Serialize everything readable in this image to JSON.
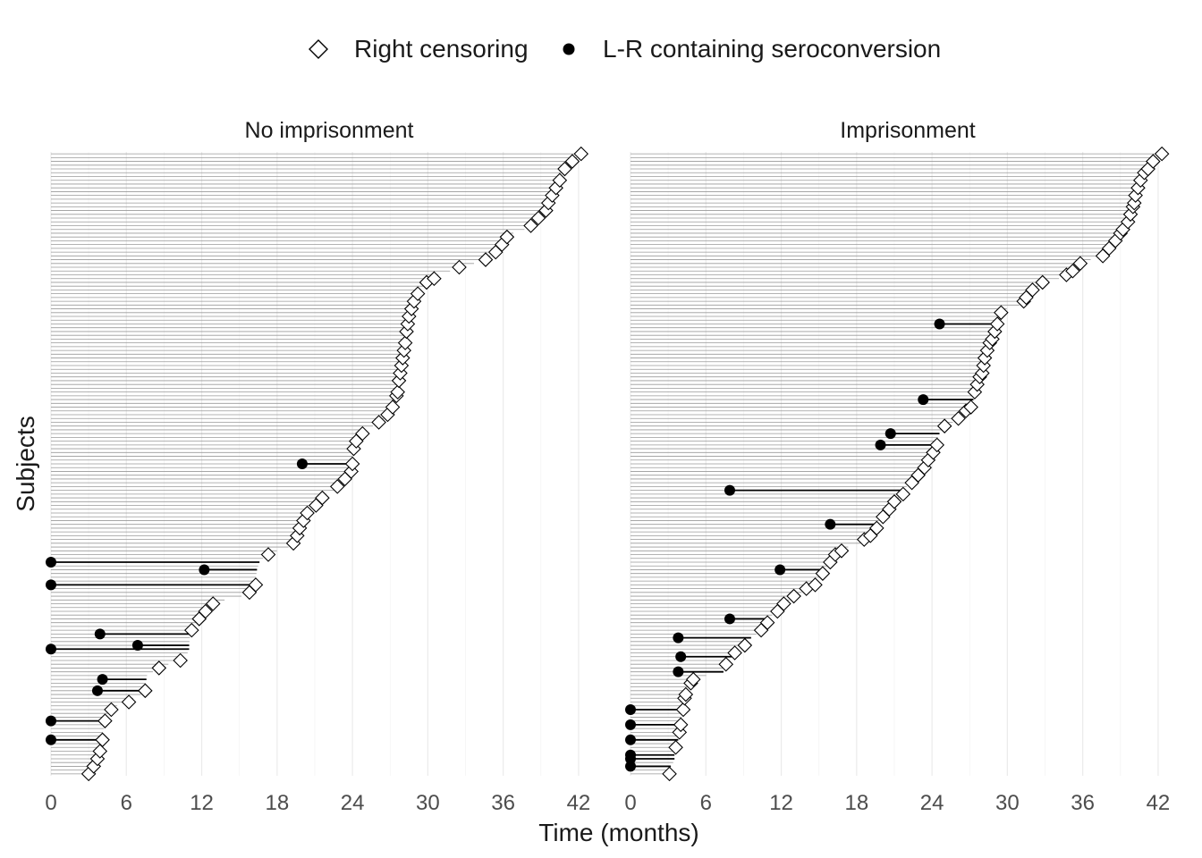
{
  "chart_data": {
    "type": "scatter",
    "legend": {
      "position": "top",
      "items": [
        {
          "label": "Right censoring",
          "marker": "open-diamond"
        },
        {
          "label": "L-R containing seroconversion",
          "marker": "filled-circle"
        }
      ]
    },
    "xlabel": "Time (months)",
    "ylabel": "Subjects",
    "x_ticks": [
      0,
      6,
      12,
      18,
      24,
      30,
      36,
      42
    ],
    "xlim": [
      0,
      43.5
    ],
    "grid": true,
    "panels": [
      {
        "title": "No imprisonment",
        "n_subjects": 165,
        "censored_times": [
          3.0,
          3.4,
          3.7,
          3.9,
          4.1,
          4.3,
          4.8,
          6.2,
          7.5,
          8.6,
          10.3,
          11.2,
          11.8,
          12.3,
          12.9,
          15.8,
          16.3,
          17.3,
          19.3,
          19.6,
          19.8,
          20.1,
          20.4,
          21.1,
          21.6,
          22.8,
          23.4,
          23.9,
          24.0,
          24.1,
          24.3,
          24.8,
          26.1,
          26.8,
          27.2,
          27.5,
          27.6,
          27.7,
          27.8,
          27.9,
          28.0,
          28.1,
          28.2,
          28.3,
          28.4,
          28.5,
          28.7,
          28.9,
          29.2,
          29.9,
          30.5,
          32.5,
          34.6,
          35.4,
          35.9,
          36.3,
          38.2,
          38.8,
          39.4,
          39.6,
          39.9,
          40.2,
          40.5,
          40.9,
          41.5,
          42.2
        ],
        "intervals": [
          [
            0,
            4.1
          ],
          [
            0,
            4.3
          ],
          [
            3.7,
            7.5
          ],
          [
            4.1,
            7.6
          ],
          [
            0,
            11.0
          ],
          [
            6.9,
            11.0
          ],
          [
            3.9,
            11.1
          ],
          [
            0,
            16.3
          ],
          [
            12.2,
            16.4
          ],
          [
            0,
            16.6
          ],
          [
            20.0,
            24.0
          ]
        ]
      },
      {
        "title": "Imprisonment",
        "n_subjects": 165,
        "censored_times": [
          3.1,
          3.6,
          3.9,
          4.0,
          4.2,
          4.3,
          4.4,
          4.8,
          5.0,
          7.6,
          8.3,
          9.1,
          10.4,
          10.9,
          11.7,
          12.2,
          13.0,
          14.0,
          14.7,
          15.3,
          15.9,
          16.3,
          16.8,
          18.6,
          19.1,
          19.6,
          20.1,
          20.6,
          21.0,
          21.7,
          22.4,
          22.9,
          23.4,
          23.7,
          24.1,
          24.4,
          25.0,
          26.1,
          26.7,
          27.1,
          27.4,
          27.6,
          27.8,
          28.0,
          28.1,
          28.2,
          28.4,
          28.6,
          28.8,
          29.0,
          29.2,
          29.5,
          31.3,
          31.5,
          32.0,
          32.8,
          34.7,
          35.2,
          35.8,
          37.6,
          38.1,
          38.6,
          39.0,
          39.2,
          39.6,
          39.8,
          40.0,
          40.1,
          40.2,
          40.4,
          40.6,
          40.9,
          41.2,
          41.6,
          42.3
        ],
        "intervals": [
          [
            0,
            3.2
          ],
          [
            0,
            3.5
          ],
          [
            0,
            3.5
          ],
          [
            0,
            3.8
          ],
          [
            0,
            4.0
          ],
          [
            0,
            4.2
          ],
          [
            3.8,
            7.4
          ],
          [
            4.0,
            8.1
          ],
          [
            3.8,
            9.6
          ],
          [
            7.9,
            11.1
          ],
          [
            11.9,
            15.5
          ],
          [
            15.9,
            19.7
          ],
          [
            7.9,
            21.9
          ],
          [
            19.9,
            24.4
          ],
          [
            20.7,
            24.6
          ],
          [
            23.3,
            27.3
          ],
          [
            24.6,
            29.2
          ]
        ]
      }
    ]
  }
}
